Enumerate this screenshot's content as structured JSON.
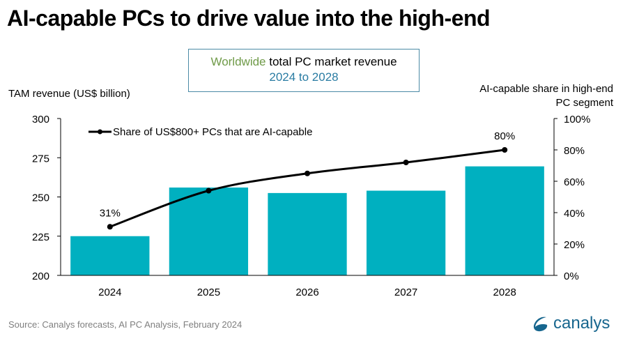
{
  "page": {
    "title": "AI-capable PCs to drive value into the high-end",
    "subtitle_green": "Worldwide",
    "subtitle_black": " total PC market revenue",
    "subtitle_line2": "2024 to 2028",
    "source": "Source: Canalys forecasts, AI PC Analysis, February 2024",
    "logo_text": "canalys",
    "colors": {
      "bar": "#00b0c0",
      "line": "#000000",
      "green": "#6f9a48",
      "blue": "#2a7ca3",
      "logo": "#17668e"
    }
  },
  "chart_data": {
    "type": "bar",
    "title": "Worldwide total PC market revenue 2024 to 2028",
    "categories": [
      "2024",
      "2025",
      "2026",
      "2027",
      "2028"
    ],
    "ylabel": "TAM revenue (US$ billion)",
    "ylabel_right": "AI-capable share in high-end PC segment",
    "ylim": [
      200,
      300
    ],
    "yticks": [
      "200",
      "225",
      "250",
      "275",
      "300"
    ],
    "ylim_right": [
      0,
      100
    ],
    "yticks_right": [
      "0%",
      "20%",
      "40%",
      "60%",
      "80%",
      "100%"
    ],
    "grid": false,
    "legend_position": "top-left",
    "series": [
      {
        "name": "TAM revenue (US$ billion)",
        "type": "bar",
        "axis": "left",
        "values": [
          225,
          256,
          252.5,
          254,
          269.5
        ]
      },
      {
        "name": "Share of US$800+ PCs that are AI-capable",
        "type": "line",
        "axis": "right",
        "values": [
          31,
          54,
          65,
          72,
          80
        ],
        "labels": [
          "31%",
          "",
          "",
          "",
          "80%"
        ]
      }
    ]
  }
}
